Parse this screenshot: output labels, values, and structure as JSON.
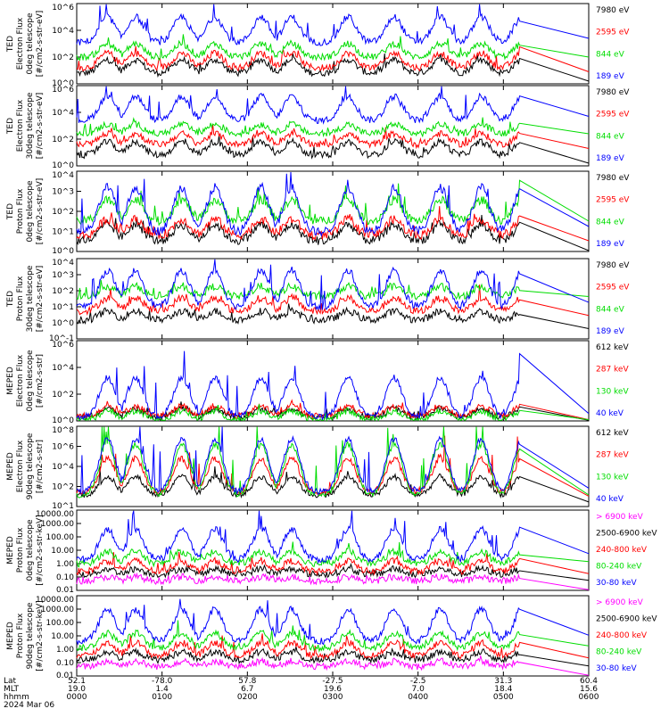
{
  "chart_data": {
    "type": "line",
    "panels": [
      {
        "ylabel": [
          "TED",
          "Electron Flux",
          "0deg telescope",
          "[#/cm2-s-str-eV]"
        ],
        "yticks": [
          "10^6",
          "10^4",
          "10^2",
          "10^0"
        ],
        "yrange": [
          0,
          6
        ],
        "series": [
          {
            "name": "7980 eV",
            "color": "#000000",
            "baseline": 0.8,
            "peaks": 1.8
          },
          {
            "name": "2595 eV",
            "color": "#ff0000",
            "baseline": 1.2,
            "peaks": 2.3
          },
          {
            "name": "844 eV",
            "color": "#00dd00",
            "baseline": 2.0,
            "peaks": 3.0
          },
          {
            "name": "189 eV",
            "color": "#0000ff",
            "baseline": 3.1,
            "peaks": 5.0
          }
        ]
      },
      {
        "ylabel": [
          "TED",
          "Electron Flux",
          "30deg telescope",
          "[#/cm2-s-str-eV]"
        ],
        "yticks": [
          "10^6",
          "10^4",
          "10^2",
          "10^0"
        ],
        "yrange": [
          0,
          6
        ],
        "series": [
          {
            "name": "7980 eV",
            "color": "#000000",
            "baseline": 0.8,
            "peaks": 1.8
          },
          {
            "name": "2595 eV",
            "color": "#ff0000",
            "baseline": 1.6,
            "peaks": 2.4
          },
          {
            "name": "844 eV",
            "color": "#00dd00",
            "baseline": 2.4,
            "peaks": 3.1
          },
          {
            "name": "189 eV",
            "color": "#0000ff",
            "baseline": 3.4,
            "peaks": 5.2
          }
        ]
      },
      {
        "ylabel": [
          "TED",
          "Proton Flux",
          "0deg telescope",
          "[#/cm2-s-str-eV]"
        ],
        "yticks": [
          "10^4",
          "10^3",
          "10^2",
          "10^1",
          "10^0"
        ],
        "yrange": [
          0,
          4.5
        ],
        "series": [
          {
            "name": "7980 eV",
            "color": "#000000",
            "baseline": 0.6,
            "peaks": 1.5
          },
          {
            "name": "2595 eV",
            "color": "#ff0000",
            "baseline": 0.9,
            "peaks": 1.8
          },
          {
            "name": "844 eV",
            "color": "#00dd00",
            "baseline": 1.7,
            "peaks": 2.9
          },
          {
            "name": "189 eV",
            "color": "#0000ff",
            "baseline": 1.1,
            "peaks": 3.6
          }
        ]
      },
      {
        "ylabel": [
          "TED",
          "Proton Flux",
          "30deg telescope",
          "[#/cm2-s-str-eV]"
        ],
        "yticks": [
          "10^4",
          "10^3",
          "10^2",
          "10^1",
          "10^0",
          "10^-1"
        ],
        "yrange": [
          -1,
          4.5
        ],
        "series": [
          {
            "name": "7980 eV",
            "color": "#000000",
            "baseline": 0.3,
            "peaks": 0.9
          },
          {
            "name": "2595 eV",
            "color": "#ff0000",
            "baseline": 0.9,
            "peaks": 1.8
          },
          {
            "name": "844 eV",
            "color": "#00dd00",
            "baseline": 1.9,
            "peaks": 2.6
          },
          {
            "name": "189 eV",
            "color": "#0000ff",
            "baseline": 1.2,
            "peaks": 3.7
          }
        ]
      },
      {
        "ylabel": [
          "MEPED",
          "Electron Flux",
          "0deg telescope",
          "[#/cm2-s-str]"
        ],
        "yticks": [
          "10^6",
          "10^4",
          "10^2",
          "10^0"
        ],
        "yrange": [
          0,
          6.5
        ],
        "series": [
          {
            "name": "612 keV",
            "color": "#000000",
            "baseline": 0.3,
            "peaks": 1.0
          },
          {
            "name": "287 keV",
            "color": "#ff0000",
            "baseline": 0.4,
            "peaks": 1.2
          },
          {
            "name": "130 keV",
            "color": "#00dd00",
            "baseline": 0.1,
            "peaks": 0.8
          },
          {
            "name": "40 keV",
            "color": "#0000ff",
            "baseline": 0.3,
            "peaks": 3.5
          }
        ]
      },
      {
        "ylabel": [
          "MEPED",
          "Electron Flux",
          "90deg telescope",
          "[#/cm2-s-str]"
        ],
        "yticks": [
          "10^8",
          "10^6",
          "10^4",
          "10^2",
          "10^1"
        ],
        "yrange": [
          1,
          8
        ],
        "series": [
          {
            "name": "612 keV",
            "color": "#000000",
            "baseline": 2.0,
            "peaks": 3.6
          },
          {
            "name": "287 keV",
            "color": "#ff0000",
            "baseline": 2.2,
            "peaks": 5.2
          },
          {
            "name": "130 keV",
            "color": "#00dd00",
            "baseline": 2.0,
            "peaks": 6.4
          },
          {
            "name": "40 keV",
            "color": "#0000ff",
            "baseline": 2.3,
            "peaks": 6.9
          }
        ]
      },
      {
        "ylabel": [
          "MEPED",
          "Proton Flux",
          "0deg telescope",
          "[#/cm2-s-str-keV]"
        ],
        "yticks": [
          "10000.00",
          "1000.00",
          "100.00",
          "10.00",
          "1.00",
          "0.10",
          "0.01"
        ],
        "yrange": [
          -2,
          4
        ],
        "series": [
          {
            "name": "> 6900 keV",
            "color": "#ff00ff",
            "baseline": -1.3,
            "peaks": -1.0
          },
          {
            "name": "2500-6900 keV",
            "color": "#000000",
            "baseline": -0.8,
            "peaks": -0.4
          },
          {
            "name": "240-800 keV",
            "color": "#ff0000",
            "baseline": -0.6,
            "peaks": 0.2
          },
          {
            "name": "80-240 keV",
            "color": "#00dd00",
            "baseline": 0.0,
            "peaks": 0.9
          },
          {
            "name": "30-80 keV",
            "color": "#0000ff",
            "baseline": 0.3,
            "peaks": 2.6
          }
        ]
      },
      {
        "ylabel": [
          "MEPED",
          "Proton Flux",
          "90deg telescope",
          "[#/cm2-s-str-keV]"
        ],
        "yticks": [
          "10000.00",
          "1000.00",
          "100.00",
          "10.00",
          "1.00",
          "0.10",
          "0.01"
        ],
        "yrange": [
          -2,
          4
        ],
        "series": [
          {
            "name": "> 6900 keV",
            "color": "#ff00ff",
            "baseline": -1.3,
            "peaks": -0.9
          },
          {
            "name": "2500-6900 keV",
            "color": "#000000",
            "baseline": -0.8,
            "peaks": -0.2
          },
          {
            "name": "240-800 keV",
            "color": "#ff0000",
            "baseline": -0.5,
            "peaks": 0.5
          },
          {
            "name": "80-240 keV",
            "color": "#00dd00",
            "baseline": 0.1,
            "peaks": 1.2
          },
          {
            "name": "30-80 keV",
            "color": "#0000ff",
            "baseline": 0.6,
            "peaks": 3.0
          }
        ]
      }
    ],
    "x_axis": {
      "row_labels": [
        "Lat",
        "MLT",
        "hhmm"
      ],
      "columns": [
        {
          "Lat": "52.1",
          "MLT": "19.0",
          "hhmm": "0000"
        },
        {
          "Lat": "-78.0",
          "MLT": "1.4",
          "hhmm": "0100"
        },
        {
          "Lat": "57.8",
          "MLT": "6.7",
          "hhmm": "0200"
        },
        {
          "Lat": "-27.5",
          "MLT": "19.6",
          "hhmm": "0300"
        },
        {
          "Lat": "-2.5",
          "MLT": "7.0",
          "hhmm": "0400"
        },
        {
          "Lat": "31.3",
          "MLT": "18.4",
          "hhmm": "0500"
        },
        {
          "Lat": "60.4",
          "MLT": "15.6",
          "hhmm": "0600"
        }
      ],
      "date": "2024 Mar 06"
    }
  }
}
